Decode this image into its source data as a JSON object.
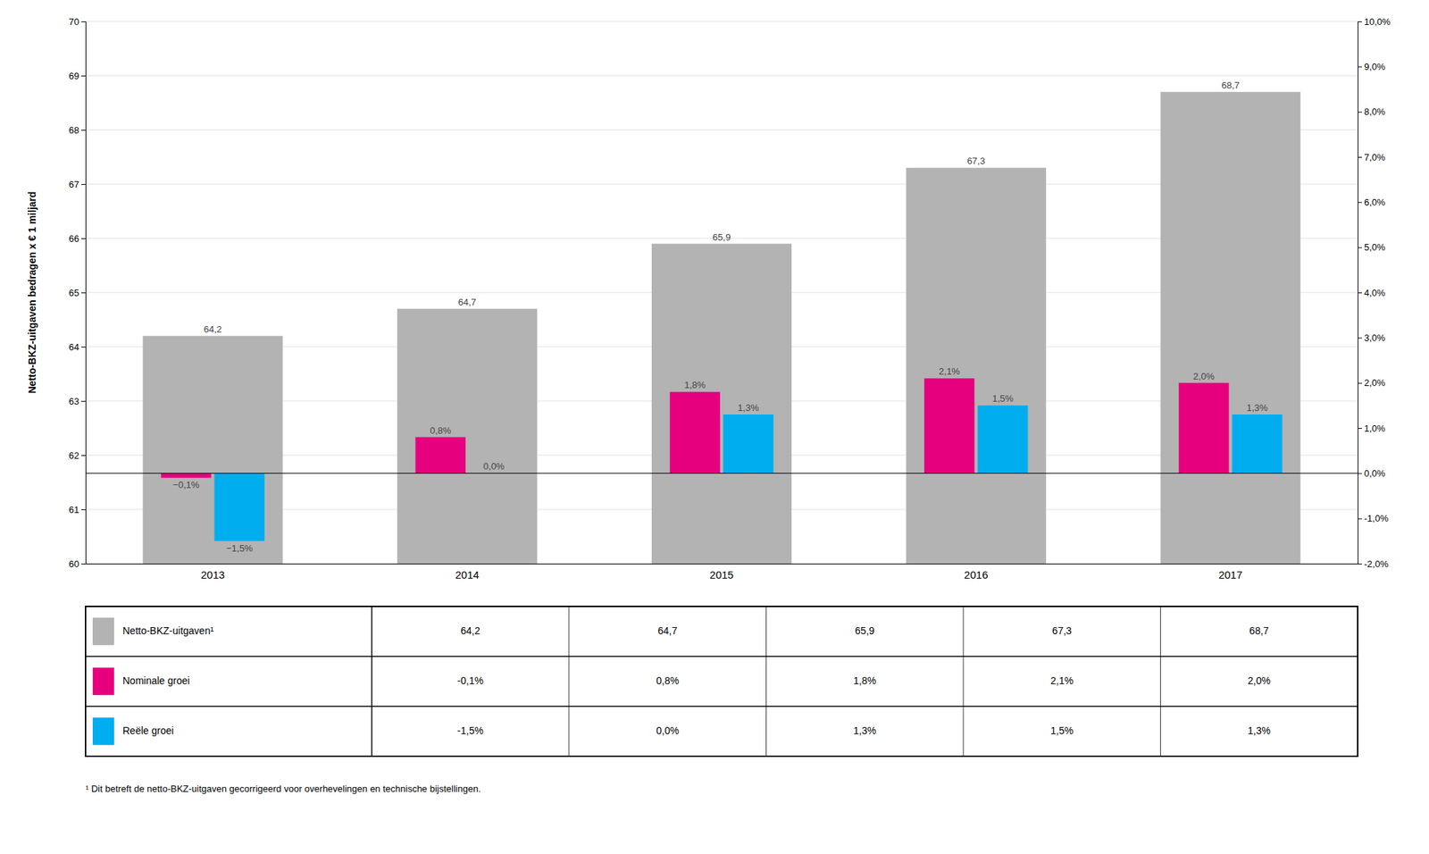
{
  "chart_data": {
    "type": "bar",
    "categories": [
      "2013",
      "2014",
      "2015",
      "2016",
      "2017"
    ],
    "y_label": "Netto-BKZ-uitgaven bedragen x € 1 miljard",
    "ylim": [
      60,
      70
    ],
    "yticks": [
      60,
      61,
      62,
      63,
      64,
      65,
      66,
      67,
      68,
      69,
      70
    ],
    "y2lim": [
      -2.0,
      10.0
    ],
    "y2ticks": [
      {
        "value": -2.0,
        "label": "-2,0%"
      },
      {
        "value": -1.0,
        "label": "-1,0%"
      },
      {
        "value": 0.0,
        "label": "0,0%"
      },
      {
        "value": 1.0,
        "label": "1,0%"
      },
      {
        "value": 2.0,
        "label": "2,0%"
      },
      {
        "value": 3.0,
        "label": "3,0%"
      },
      {
        "value": 4.0,
        "label": "4,0%"
      },
      {
        "value": 5.0,
        "label": "5,0%"
      },
      {
        "value": 6.0,
        "label": "6,0%"
      },
      {
        "value": 7.0,
        "label": "7,0%"
      },
      {
        "value": 8.0,
        "label": "8,0%"
      },
      {
        "value": 9.0,
        "label": "9,0%"
      },
      {
        "value": 10.0,
        "label": "10,0%"
      }
    ],
    "grid": true,
    "data_labels": true,
    "series": [
      {
        "name": "Netto-BKZ-uitgaven¹",
        "color": "#b3b3b3",
        "values": [
          64.2,
          64.7,
          65.9,
          67.3,
          68.7
        ],
        "value_labels": [
          "64,2",
          "64,7",
          "65,9",
          "67,3",
          "68,7"
        ],
        "table_labels": [
          "64,2",
          "64,7",
          "65,9",
          "67,3",
          "68,7"
        ]
      },
      {
        "name": "Nominale groei",
        "color": "#e6007e",
        "axis": "y2",
        "values": [
          -0.1,
          0.8,
          1.8,
          2.1,
          2.0
        ],
        "value_labels": [
          "−0,1%",
          "0,8%",
          "1,8%",
          "2,1%",
          "2,0%"
        ],
        "table_labels": [
          "-0,1%",
          "0,8%",
          "1,8%",
          "2,1%",
          "2,0%"
        ]
      },
      {
        "name": "Reële groei",
        "color": "#00adef",
        "axis": "y2",
        "values": [
          -1.5,
          0.0,
          1.3,
          1.5,
          1.3
        ],
        "value_labels": [
          "−1,5%",
          "0,0%",
          "1,3%",
          "1,5%",
          "1,3%"
        ],
        "table_labels": [
          "-1,5%",
          "0,0%",
          "1,3%",
          "1,5%",
          "1,3%"
        ]
      }
    ],
    "footnote": "¹ Dit betreft de netto-BKZ-uitgaven gecorrigeerd voor overhevelingen en technische bijstellingen."
  }
}
